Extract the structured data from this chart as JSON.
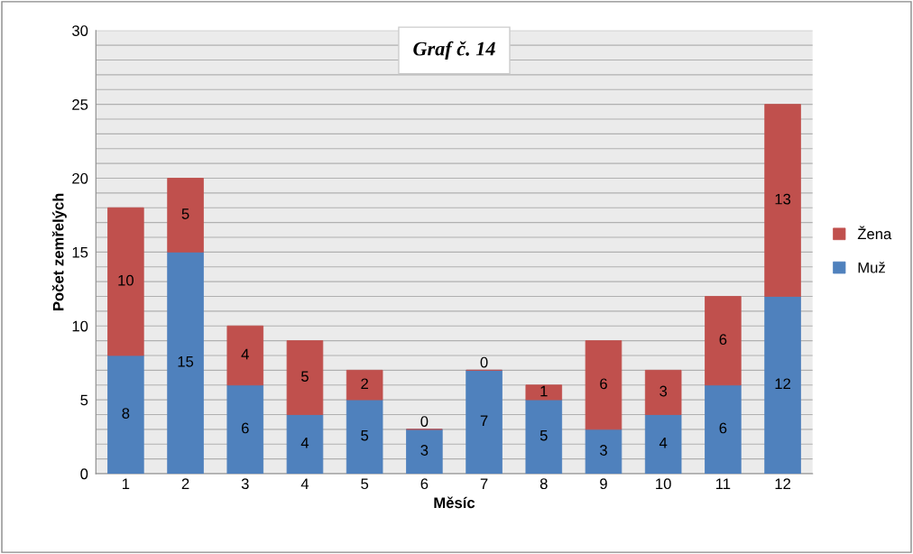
{
  "chart_data": {
    "type": "bar",
    "title": "Graf č. 14",
    "xlabel": "Měsíc",
    "ylabel": "Počet zemřelých",
    "categories": [
      "1",
      "2",
      "3",
      "4",
      "5",
      "6",
      "7",
      "8",
      "9",
      "10",
      "11",
      "12"
    ],
    "stacked": true,
    "series": [
      {
        "name": "Muž",
        "color": "#4f81bd",
        "values": [
          8,
          15,
          6,
          4,
          5,
          3,
          7,
          5,
          3,
          4,
          6,
          12
        ]
      },
      {
        "name": "Žena",
        "color": "#c0504d",
        "values": [
          10,
          5,
          4,
          5,
          2,
          0,
          0,
          1,
          6,
          3,
          6,
          13
        ]
      }
    ],
    "ylim": [
      0,
      30
    ],
    "yticks": [
      0,
      {
        "value": 1,
        "label": null
      },
      {
        "value": 2,
        "label": null
      },
      {
        "value": 3,
        "label": null
      },
      {
        "value": 4,
        "label": null
      },
      5,
      {
        "value": 6,
        "label": null
      },
      {
        "value": 7,
        "label": null
      },
      {
        "value": 8,
        "label": null
      },
      {
        "value": 9,
        "label": null
      },
      10,
      {
        "value": 11,
        "label": null
      },
      {
        "value": 12,
        "label": null
      },
      {
        "value": 13,
        "label": null
      },
      {
        "value": 14,
        "label": null
      },
      15,
      {
        "value": 16,
        "label": null
      },
      {
        "value": 17,
        "label": null
      },
      {
        "value": 18,
        "label": null
      },
      {
        "value": 19,
        "label": null
      },
      20,
      {
        "value": 21,
        "label": null
      },
      {
        "value": 22,
        "label": null
      },
      {
        "value": 23,
        "label": null
      },
      {
        "value": 24,
        "label": null
      },
      25,
      {
        "value": 26,
        "label": null
      },
      {
        "value": 27,
        "label": null
      },
      {
        "value": 28,
        "label": null
      },
      {
        "value": 29,
        "label": null
      },
      30
    ],
    "grid": "y",
    "legend": "right",
    "data_labels": true
  }
}
